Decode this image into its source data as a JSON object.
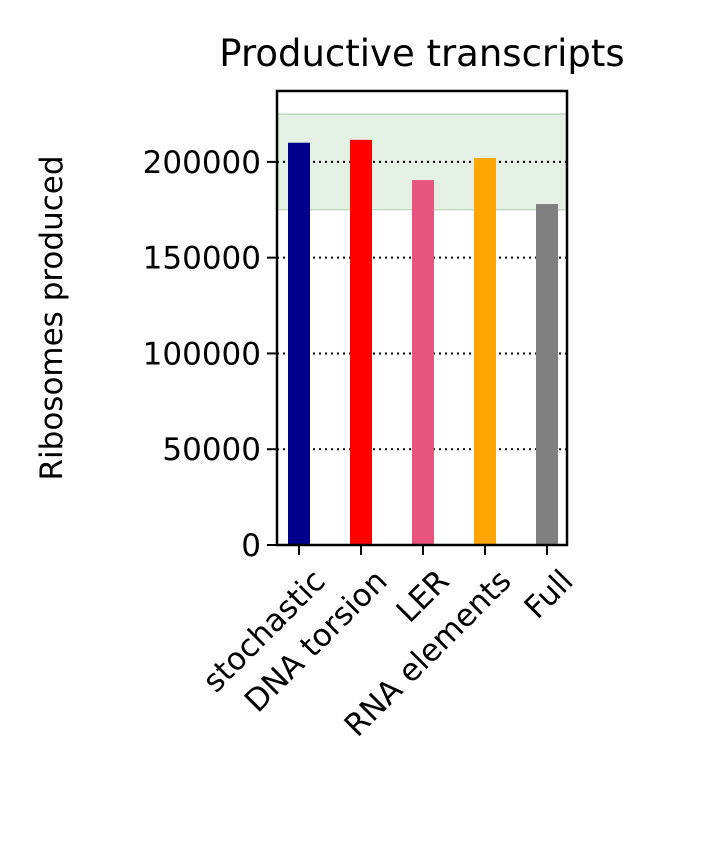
{
  "chart_data": {
    "type": "bar",
    "title": "Productive transcripts",
    "xlabel": "",
    "ylabel": "Ribosomes produced",
    "categories": [
      "stochastic",
      "DNA torsion",
      "LER",
      "RNA elements",
      "Full"
    ],
    "values": [
      210000,
      211500,
      190500,
      202000,
      178000
    ],
    "colors": [
      "#00008b",
      "#ff0000",
      "#e75480",
      "#ffa500",
      "#808080"
    ],
    "ylim": [
      0,
      237000
    ],
    "yticks": [
      0,
      50000,
      100000,
      150000,
      200000
    ],
    "ytick_labels": [
      "0",
      "50000",
      "100000",
      "150000",
      "200000"
    ],
    "grid": "y-dotted",
    "reference_band": {
      "from": 175000,
      "to": 225000,
      "color": "#2e8b2e"
    }
  }
}
